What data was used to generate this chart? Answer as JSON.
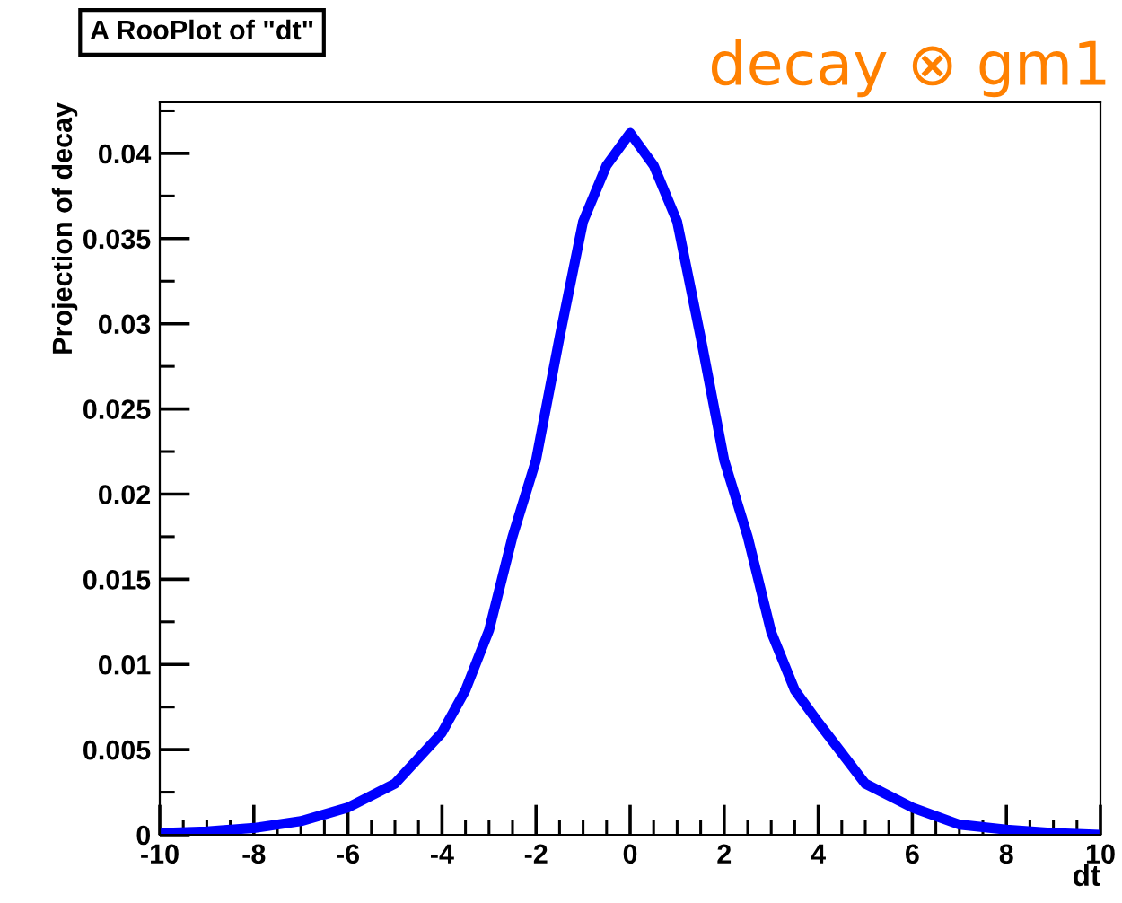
{
  "chart_data": {
    "type": "line",
    "title": "A RooPlot of \"dt\"",
    "xlabel": "dt",
    "ylabel": "Projection of decay",
    "annotations": [
      "decay ⊗ gm1"
    ],
    "x": [
      -10,
      -9,
      -8,
      -7,
      -6,
      -5,
      -4,
      -3.5,
      -3,
      -2.5,
      -2,
      -1.5,
      -1,
      -0.5,
      0,
      0.5,
      1,
      1.5,
      2,
      2.5,
      3,
      3.5,
      4,
      5,
      6,
      7,
      8,
      9,
      10
    ],
    "series": [
      {
        "color": "#0000ff",
        "values": [
          0.0001,
          0.0002,
          0.0004,
          0.0008,
          0.0016,
          0.003,
          0.006,
          0.0085,
          0.012,
          0.0175,
          0.022,
          0.0292,
          0.036,
          0.0393,
          0.0412,
          0.0393,
          0.036,
          0.0292,
          0.022,
          0.0175,
          0.0119,
          0.0085,
          0.0066,
          0.003,
          0.0016,
          0.0006,
          0.0003,
          0.0001,
          0
        ]
      }
    ],
    "xlim": [
      -10,
      10
    ],
    "ylim": [
      0,
      0.043
    ],
    "xticks": [
      -10,
      -8,
      -6,
      -4,
      -2,
      0,
      2,
      4,
      6,
      8,
      10
    ],
    "yticks": [
      0,
      0.005,
      0.01,
      0.015,
      0.02,
      0.025,
      0.03,
      0.035,
      0.04
    ],
    "grid": false,
    "legend": false,
    "marker": "none",
    "line_style": "solid"
  }
}
